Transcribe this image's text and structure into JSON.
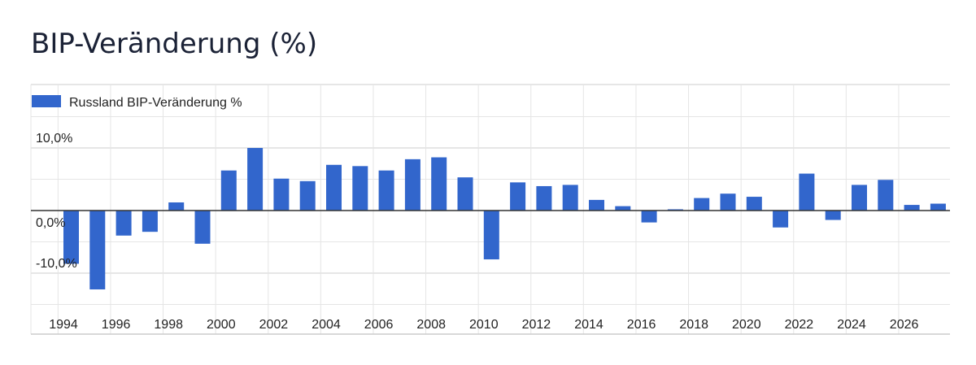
{
  "page_title": "BIP-Veränderung (%)",
  "colors": {
    "bar": "#3266cc",
    "grid": "#e5e5e5",
    "axis": "#333333",
    "text": "#222222"
  },
  "chart_data": {
    "type": "bar",
    "title": "BIP-Veränderung (%)",
    "legend": {
      "position": "top-left",
      "entries": [
        "Russland BIP-Veränderung %"
      ]
    },
    "grid": true,
    "ylim": [
      -15,
      15
    ],
    "y_tick_labels": [
      {
        "value": 10,
        "label": "10,0%"
      },
      {
        "value": 0,
        "label": "0,0%"
      },
      {
        "value": -10,
        "label": "-10,0%"
      }
    ],
    "x_tick_labels": [
      "1994",
      "1996",
      "1998",
      "2000",
      "2002",
      "2004",
      "2006",
      "2008",
      "2010",
      "2012",
      "2014",
      "2016",
      "2018",
      "2020",
      "2022",
      "2024",
      "2026"
    ],
    "categories": [
      1994,
      1995,
      1996,
      1997,
      1998,
      1999,
      2000,
      2001,
      2002,
      2003,
      2004,
      2005,
      2006,
      2007,
      2008,
      2009,
      2010,
      2011,
      2012,
      2013,
      2014,
      2015,
      2016,
      2017,
      2018,
      2019,
      2020,
      2021,
      2022,
      2023,
      2024,
      2025,
      2026,
      2027
    ],
    "series": [
      {
        "name": "Russland BIP-Veränderung %",
        "values": [
          -8.5,
          -12.6,
          -4.0,
          -3.4,
          1.3,
          -5.3,
          6.4,
          10.0,
          5.1,
          4.7,
          7.3,
          7.1,
          6.4,
          8.2,
          8.5,
          5.3,
          -7.8,
          4.5,
          3.9,
          4.1,
          1.7,
          0.7,
          -1.9,
          0.2,
          2.0,
          2.7,
          2.2,
          -2.7,
          5.9,
          -1.5,
          4.1,
          4.9,
          0.9,
          1.1
        ]
      }
    ]
  }
}
